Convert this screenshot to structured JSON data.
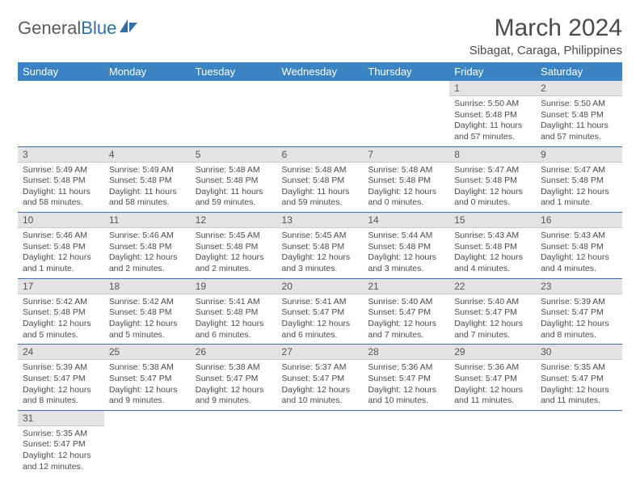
{
  "brand": {
    "general": "General",
    "blue": "Blue"
  },
  "title": "March 2024",
  "location": "Sibagat, Caraga, Philippines",
  "header_bg": "#3b84c4",
  "days_of_week": [
    "Sunday",
    "Monday",
    "Tuesday",
    "Wednesday",
    "Thursday",
    "Friday",
    "Saturday"
  ],
  "weeks": [
    [
      null,
      null,
      null,
      null,
      null,
      {
        "n": "1",
        "sr": "Sunrise: 5:50 AM",
        "ss": "Sunset: 5:48 PM",
        "dl": "Daylight: 11 hours and 57 minutes."
      },
      {
        "n": "2",
        "sr": "Sunrise: 5:50 AM",
        "ss": "Sunset: 5:48 PM",
        "dl": "Daylight: 11 hours and 57 minutes."
      }
    ],
    [
      {
        "n": "3",
        "sr": "Sunrise: 5:49 AM",
        "ss": "Sunset: 5:48 PM",
        "dl": "Daylight: 11 hours and 58 minutes."
      },
      {
        "n": "4",
        "sr": "Sunrise: 5:49 AM",
        "ss": "Sunset: 5:48 PM",
        "dl": "Daylight: 11 hours and 58 minutes."
      },
      {
        "n": "5",
        "sr": "Sunrise: 5:48 AM",
        "ss": "Sunset: 5:48 PM",
        "dl": "Daylight: 11 hours and 59 minutes."
      },
      {
        "n": "6",
        "sr": "Sunrise: 5:48 AM",
        "ss": "Sunset: 5:48 PM",
        "dl": "Daylight: 11 hours and 59 minutes."
      },
      {
        "n": "7",
        "sr": "Sunrise: 5:48 AM",
        "ss": "Sunset: 5:48 PM",
        "dl": "Daylight: 12 hours and 0 minutes."
      },
      {
        "n": "8",
        "sr": "Sunrise: 5:47 AM",
        "ss": "Sunset: 5:48 PM",
        "dl": "Daylight: 12 hours and 0 minutes."
      },
      {
        "n": "9",
        "sr": "Sunrise: 5:47 AM",
        "ss": "Sunset: 5:48 PM",
        "dl": "Daylight: 12 hours and 1 minute."
      }
    ],
    [
      {
        "n": "10",
        "sr": "Sunrise: 5:46 AM",
        "ss": "Sunset: 5:48 PM",
        "dl": "Daylight: 12 hours and 1 minute."
      },
      {
        "n": "11",
        "sr": "Sunrise: 5:46 AM",
        "ss": "Sunset: 5:48 PM",
        "dl": "Daylight: 12 hours and 2 minutes."
      },
      {
        "n": "12",
        "sr": "Sunrise: 5:45 AM",
        "ss": "Sunset: 5:48 PM",
        "dl": "Daylight: 12 hours and 2 minutes."
      },
      {
        "n": "13",
        "sr": "Sunrise: 5:45 AM",
        "ss": "Sunset: 5:48 PM",
        "dl": "Daylight: 12 hours and 3 minutes."
      },
      {
        "n": "14",
        "sr": "Sunrise: 5:44 AM",
        "ss": "Sunset: 5:48 PM",
        "dl": "Daylight: 12 hours and 3 minutes."
      },
      {
        "n": "15",
        "sr": "Sunrise: 5:43 AM",
        "ss": "Sunset: 5:48 PM",
        "dl": "Daylight: 12 hours and 4 minutes."
      },
      {
        "n": "16",
        "sr": "Sunrise: 5:43 AM",
        "ss": "Sunset: 5:48 PM",
        "dl": "Daylight: 12 hours and 4 minutes."
      }
    ],
    [
      {
        "n": "17",
        "sr": "Sunrise: 5:42 AM",
        "ss": "Sunset: 5:48 PM",
        "dl": "Daylight: 12 hours and 5 minutes."
      },
      {
        "n": "18",
        "sr": "Sunrise: 5:42 AM",
        "ss": "Sunset: 5:48 PM",
        "dl": "Daylight: 12 hours and 5 minutes."
      },
      {
        "n": "19",
        "sr": "Sunrise: 5:41 AM",
        "ss": "Sunset: 5:48 PM",
        "dl": "Daylight: 12 hours and 6 minutes."
      },
      {
        "n": "20",
        "sr": "Sunrise: 5:41 AM",
        "ss": "Sunset: 5:47 PM",
        "dl": "Daylight: 12 hours and 6 minutes."
      },
      {
        "n": "21",
        "sr": "Sunrise: 5:40 AM",
        "ss": "Sunset: 5:47 PM",
        "dl": "Daylight: 12 hours and 7 minutes."
      },
      {
        "n": "22",
        "sr": "Sunrise: 5:40 AM",
        "ss": "Sunset: 5:47 PM",
        "dl": "Daylight: 12 hours and 7 minutes."
      },
      {
        "n": "23",
        "sr": "Sunrise: 5:39 AM",
        "ss": "Sunset: 5:47 PM",
        "dl": "Daylight: 12 hours and 8 minutes."
      }
    ],
    [
      {
        "n": "24",
        "sr": "Sunrise: 5:39 AM",
        "ss": "Sunset: 5:47 PM",
        "dl": "Daylight: 12 hours and 8 minutes."
      },
      {
        "n": "25",
        "sr": "Sunrise: 5:38 AM",
        "ss": "Sunset: 5:47 PM",
        "dl": "Daylight: 12 hours and 9 minutes."
      },
      {
        "n": "26",
        "sr": "Sunrise: 5:38 AM",
        "ss": "Sunset: 5:47 PM",
        "dl": "Daylight: 12 hours and 9 minutes."
      },
      {
        "n": "27",
        "sr": "Sunrise: 5:37 AM",
        "ss": "Sunset: 5:47 PM",
        "dl": "Daylight: 12 hours and 10 minutes."
      },
      {
        "n": "28",
        "sr": "Sunrise: 5:36 AM",
        "ss": "Sunset: 5:47 PM",
        "dl": "Daylight: 12 hours and 10 minutes."
      },
      {
        "n": "29",
        "sr": "Sunrise: 5:36 AM",
        "ss": "Sunset: 5:47 PM",
        "dl": "Daylight: 12 hours and 11 minutes."
      },
      {
        "n": "30",
        "sr": "Sunrise: 5:35 AM",
        "ss": "Sunset: 5:47 PM",
        "dl": "Daylight: 12 hours and 11 minutes."
      }
    ],
    [
      {
        "n": "31",
        "sr": "Sunrise: 5:35 AM",
        "ss": "Sunset: 5:47 PM",
        "dl": "Daylight: 12 hours and 12 minutes."
      },
      null,
      null,
      null,
      null,
      null,
      null
    ]
  ]
}
